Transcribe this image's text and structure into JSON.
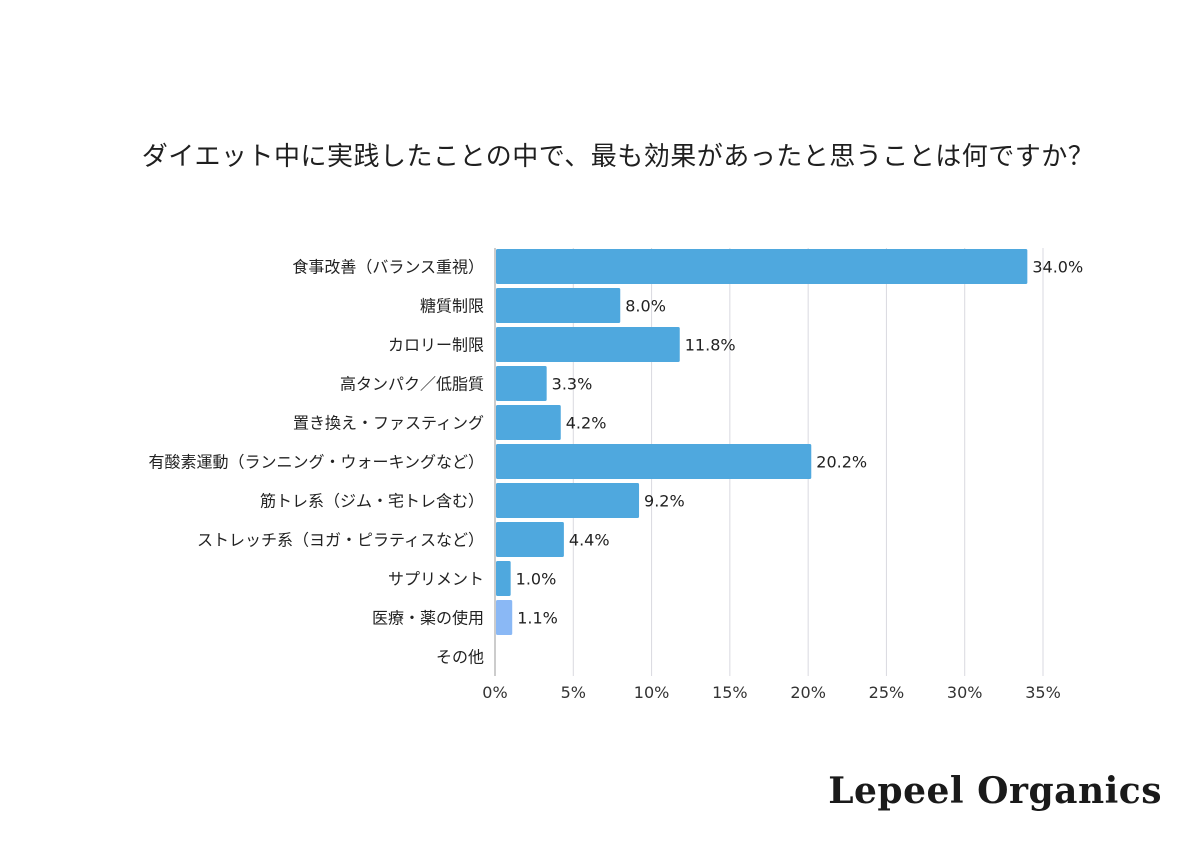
{
  "chart_data": {
    "type": "bar",
    "orientation": "horizontal",
    "title": "ダイエット中に実践したことの中で、最も効果があったと思うことは何ですか？",
    "categories": [
      "食事改善（バランス重視）",
      "糖質制限",
      "カロリー制限",
      "高タンパク／低脂質",
      "置き換え・ファスティング",
      "有酸素運動（ランニング・ウォーキングなど）",
      "筋トレ系（ジム・宅トレ含む）",
      "ストレッチ系（ヨガ・ピラティスなど）",
      "サプリメント",
      "医療・薬の使用",
      "その他"
    ],
    "values": [
      34.0,
      8.0,
      11.8,
      3.3,
      4.2,
      20.2,
      9.2,
      4.4,
      1.0,
      1.1,
      0
    ],
    "value_labels": [
      "34.0%",
      "8.0%",
      "11.8%",
      "3.3%",
      "4.2%",
      "20.2%",
      "9.2%",
      "4.4%",
      "1.0%",
      "1.1%",
      ""
    ],
    "xlim": [
      0,
      35
    ],
    "x_ticks": [
      "0%",
      "5%",
      "10%",
      "15%",
      "20%",
      "25%",
      "30%",
      "35%"
    ],
    "x_tick_values": [
      0,
      5,
      10,
      15,
      20,
      25,
      30,
      35
    ],
    "grid": true,
    "bar_color": "#4fa8de",
    "highlight_color": "#8ab8f5",
    "highlight_index": 9
  },
  "brand": "Lepeel Organics"
}
